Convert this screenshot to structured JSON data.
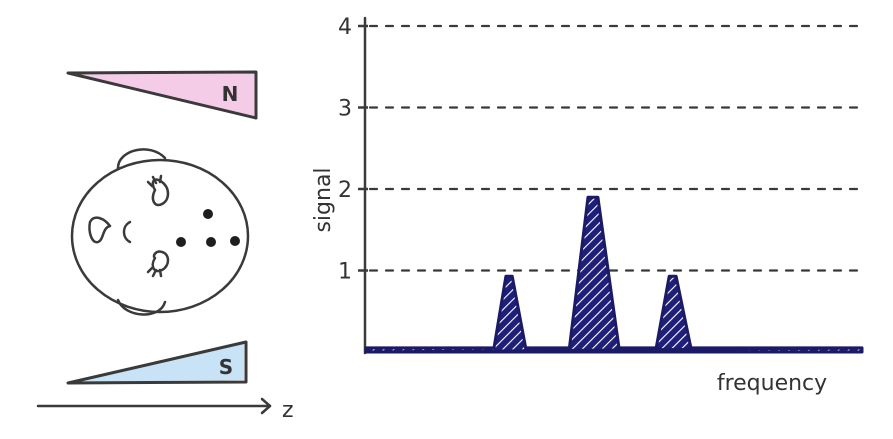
{
  "magnets": {
    "north_label": "N",
    "south_label": "S",
    "north_fill": "#f4c6e6",
    "south_fill": "#c4e2f4"
  },
  "axis_z_label": "z",
  "chart_data": {
    "type": "area",
    "xlabel": "frequency",
    "ylabel": "signal",
    "ylim": [
      0,
      4
    ],
    "yticks": [
      "1",
      "2",
      "3",
      "4"
    ],
    "grid": true,
    "baseline": 0.05,
    "peaks": [
      {
        "center": 0.29,
        "half_width": 0.032,
        "height": 0.93
      },
      {
        "center": 0.46,
        "half_width": 0.05,
        "height": 1.9
      },
      {
        "center": 0.62,
        "half_width": 0.035,
        "height": 0.93
      }
    ],
    "fill_color": "#1f1f7a"
  }
}
